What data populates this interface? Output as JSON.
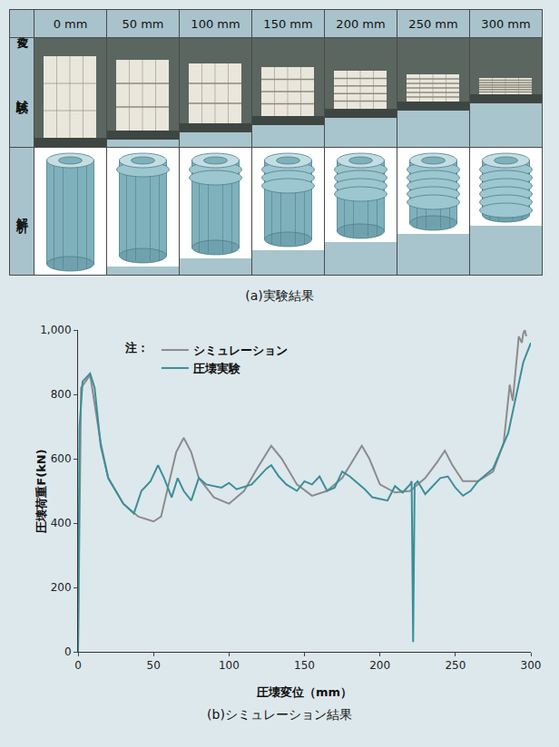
{
  "panel_a": {
    "header_label": "変位",
    "columns": [
      "0 mm",
      "50 mm",
      "100 mm",
      "150 mm",
      "200 mm",
      "250 mm",
      "300 mm"
    ],
    "rows": [
      "試験",
      "解析"
    ],
    "caption": "(a)実験結果"
  },
  "chart_data": {
    "type": "line",
    "caption": "(b)シミュレーション結果",
    "x_label": "圧壊変位（mm）",
    "y_label": "圧壊荷重F(kN)",
    "legend_title": "注：",
    "legend": "top-left",
    "grid": false,
    "xlim": [
      0,
      300
    ],
    "xticks": [
      0,
      50,
      100,
      150,
      200,
      250,
      300
    ],
    "ylim": [
      0,
      1000
    ],
    "yticks": [
      0,
      200,
      400,
      600,
      800,
      {
        "value": 1000,
        "label": "1,000"
      }
    ],
    "series": [
      {
        "name": "シミュレーション",
        "color": "#8c8c8c",
        "x": [
          0,
          2,
          8,
          10,
          15,
          20,
          30,
          40,
          50,
          55,
          60,
          65,
          70,
          75,
          80,
          90,
          100,
          110,
          120,
          128,
          135,
          145,
          155,
          165,
          175,
          183,
          188,
          193,
          200,
          210,
          220,
          230,
          238,
          243,
          248,
          255,
          265,
          275,
          282,
          286,
          288,
          292,
          294,
          295,
          296,
          297
        ],
        "values": [
          0,
          820,
          860,
          800,
          650,
          540,
          460,
          420,
          405,
          420,
          520,
          620,
          665,
          620,
          540,
          480,
          460,
          500,
          580,
          640,
          600,
          520,
          485,
          500,
          540,
          600,
          640,
          600,
          520,
          495,
          500,
          540,
          590,
          625,
          580,
          530,
          530,
          560,
          650,
          830,
          780,
          980,
          960,
          990,
          1000,
          980
        ]
      },
      {
        "name": "圧壊実験",
        "color": "#3a8f9a",
        "x": [
          0,
          1,
          3,
          8,
          11,
          15,
          20,
          30,
          37,
          42,
          48,
          53,
          57,
          62,
          66,
          70,
          75,
          80,
          85,
          95,
          100,
          105,
          115,
          125,
          128,
          133,
          138,
          145,
          150,
          155,
          160,
          165,
          170,
          175,
          180,
          185,
          190,
          195,
          205,
          210,
          215,
          220,
          221,
          222,
          223,
          225,
          230,
          240,
          245,
          250,
          255,
          260,
          265,
          275,
          285,
          295,
          300
        ],
        "values": [
          0,
          700,
          840,
          865,
          820,
          640,
          540,
          460,
          430,
          500,
          530,
          580,
          540,
          480,
          540,
          500,
          470,
          540,
          520,
          510,
          525,
          505,
          520,
          570,
          580,
          545,
          520,
          500,
          530,
          520,
          545,
          500,
          510,
          560,
          545,
          525,
          505,
          480,
          470,
          515,
          495,
          520,
          530,
          30,
          520,
          530,
          490,
          540,
          545,
          510,
          485,
          500,
          530,
          570,
          680,
          900,
          960
        ]
      }
    ]
  }
}
